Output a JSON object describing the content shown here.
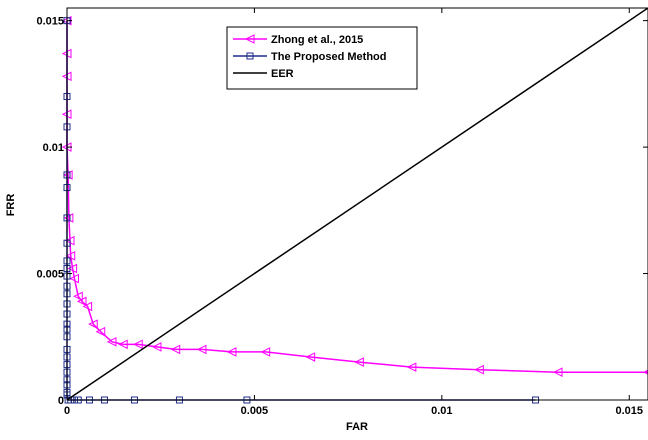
{
  "chart_data": {
    "type": "line",
    "title": "",
    "xlabel": "FAR",
    "ylabel": "FRR",
    "xlim": [
      0,
      0.0155
    ],
    "ylim": [
      0,
      0.0155
    ],
    "x_ticks": [
      0,
      0.005,
      0.01,
      0.015
    ],
    "x_tick_labels": [
      "0",
      "0.005",
      "0.01",
      "0.015"
    ],
    "y_ticks": [
      0,
      0.005,
      0.01,
      0.015
    ],
    "y_tick_labels": [
      "0",
      "0.005",
      "0.01",
      "0.015"
    ],
    "grid": false,
    "legend_position": "top-center",
    "series": [
      {
        "name": "Zhong et al., 2015",
        "color": "#ff00ff",
        "marker": "triangle-left",
        "x": [
          0.0,
          0.0,
          0.0,
          0.0,
          0.0,
          3e-05,
          5e-05,
          8e-05,
          0.0001,
          0.00015,
          0.0002,
          0.0003,
          0.0004,
          0.00055,
          0.0007,
          0.0009,
          0.0012,
          0.0015,
          0.0019,
          0.0024,
          0.0029,
          0.0036,
          0.0044,
          0.0053,
          0.0065,
          0.0078,
          0.0092,
          0.011,
          0.0131,
          0.0155
        ],
        "y": [
          0.015,
          0.0137,
          0.0128,
          0.0113,
          0.01,
          0.0089,
          0.0072,
          0.0063,
          0.0057,
          0.0052,
          0.0048,
          0.0041,
          0.0039,
          0.0037,
          0.003,
          0.0027,
          0.0023,
          0.0022,
          0.0022,
          0.0021,
          0.002,
          0.002,
          0.0019,
          0.0019,
          0.0017,
          0.0015,
          0.0013,
          0.0012,
          0.0011,
          0.0011
        ]
      },
      {
        "name": "The Proposed Method",
        "color": "#1f2d8a",
        "marker": "square",
        "x": [
          0.0,
          0.0,
          0.0,
          0.0,
          0.0,
          0.0,
          0.0,
          0.0,
          0.0,
          0.0,
          0.0,
          0.0,
          0.0,
          0.0,
          0.0,
          0.0,
          0.0,
          0.0,
          0.0,
          0.0,
          0.0,
          0.0,
          0.0,
          0.0,
          0.0,
          3e-05,
          0.0001,
          0.0002,
          0.0003,
          0.0006,
          0.001,
          0.0018,
          0.003,
          0.0048,
          0.0125
        ],
        "y": [
          0.015,
          0.012,
          0.0108,
          0.0089,
          0.0084,
          0.0072,
          0.0062,
          0.0055,
          0.0052,
          0.0049,
          0.0045,
          0.0042,
          0.0038,
          0.0034,
          0.003,
          0.0028,
          0.0025,
          0.002,
          0.0017,
          0.0014,
          0.0011,
          0.0008,
          0.0006,
          0.0003,
          0.0002,
          0.0,
          0.0,
          0.0,
          0.0,
          0.0,
          0.0,
          0.0,
          0.0,
          0.0,
          0.0
        ]
      },
      {
        "name": "EER",
        "color": "#000000",
        "marker": "none",
        "x": [
          0,
          0.0155
        ],
        "y": [
          0,
          0.0155
        ]
      }
    ]
  }
}
